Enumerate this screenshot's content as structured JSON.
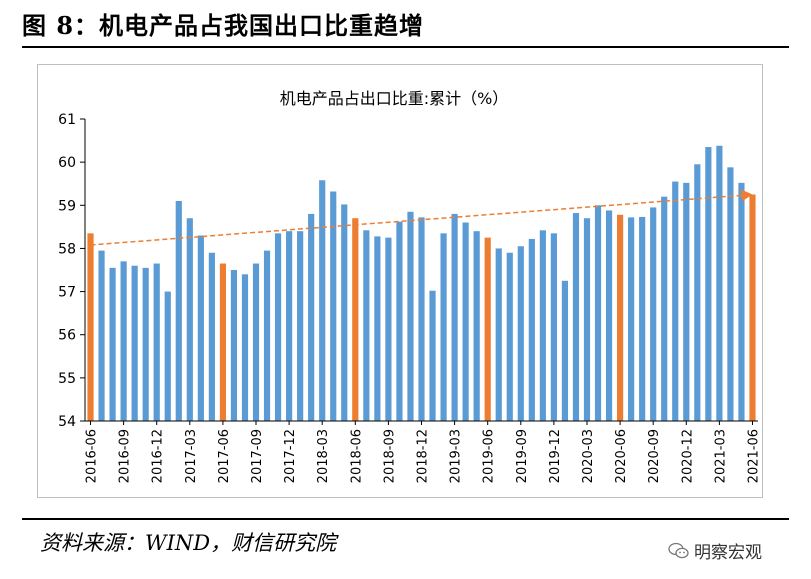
{
  "figure_title": "图 8：机电产品占我国出口比重趋增",
  "source_text": "资料来源：WIND，财信研究院",
  "brand_text": "明察宏观",
  "colors": {
    "bar": "#5B9BD5",
    "highlight": "#ED7D31",
    "trend": "#ED7D31",
    "axis": "#000000"
  },
  "icons": {
    "brand": "wechat-icon"
  },
  "chart_data": {
    "type": "bar",
    "title": "机电产品占出口比重:累计（%）",
    "xlabel": "",
    "ylabel": "",
    "ylim": [
      54,
      61
    ],
    "yticks": [
      54,
      55,
      56,
      57,
      58,
      59,
      60,
      61
    ],
    "categories": [
      "2016-06",
      "2016-07",
      "2016-08",
      "2016-09",
      "2016-10",
      "2016-11",
      "2016-12",
      "2017-01",
      "2017-02",
      "2017-03",
      "2017-04",
      "2017-05",
      "2017-06",
      "2017-07",
      "2017-08",
      "2017-09",
      "2017-10",
      "2017-11",
      "2017-12",
      "2018-01",
      "2018-02",
      "2018-03",
      "2018-04",
      "2018-05",
      "2018-06",
      "2018-07",
      "2018-08",
      "2018-09",
      "2018-10",
      "2018-11",
      "2018-12",
      "2019-01",
      "2019-02",
      "2019-03",
      "2019-04",
      "2019-05",
      "2019-06",
      "2019-07",
      "2019-08",
      "2019-09",
      "2019-10",
      "2019-11",
      "2019-12",
      "2020-01",
      "2020-02",
      "2020-03",
      "2020-04",
      "2020-05",
      "2020-06",
      "2020-07",
      "2020-08",
      "2020-09",
      "2020-10",
      "2020-11",
      "2020-12",
      "2021-01",
      "2021-02",
      "2021-03",
      "2021-04",
      "2021-05",
      "2021-06"
    ],
    "xtick_labels": [
      "2016-06",
      "2016-09",
      "2016-12",
      "2017-03",
      "2017-06",
      "2017-09",
      "2017-12",
      "2018-03",
      "2018-06",
      "2018-09",
      "2018-12",
      "2019-03",
      "2019-06",
      "2019-09",
      "2019-12",
      "2020-03",
      "2020-06",
      "2020-09",
      "2020-12",
      "2021-03",
      "2021-06"
    ],
    "values": [
      58.35,
      57.95,
      57.55,
      57.7,
      57.6,
      57.55,
      57.65,
      57.0,
      59.1,
      58.7,
      58.3,
      57.9,
      57.65,
      57.5,
      57.4,
      57.65,
      57.95,
      58.35,
      58.4,
      58.4,
      58.8,
      59.58,
      59.32,
      59.02,
      58.7,
      58.42,
      58.28,
      58.25,
      58.62,
      58.85,
      58.72,
      57.02,
      58.35,
      58.8,
      58.6,
      58.4,
      58.25,
      58.0,
      57.9,
      58.05,
      58.22,
      58.42,
      58.35,
      57.25,
      58.82,
      58.7,
      59.0,
      58.88,
      58.78,
      58.72,
      58.73,
      58.95,
      59.2,
      59.55,
      59.52,
      59.95,
      60.35,
      60.38,
      59.88,
      59.52,
      59.25
    ],
    "highlight_indices": [
      0,
      12,
      24,
      36,
      48,
      60
    ],
    "trendline": {
      "start": 58.08,
      "end": 59.25,
      "style": "dashed",
      "arrow": true
    }
  }
}
